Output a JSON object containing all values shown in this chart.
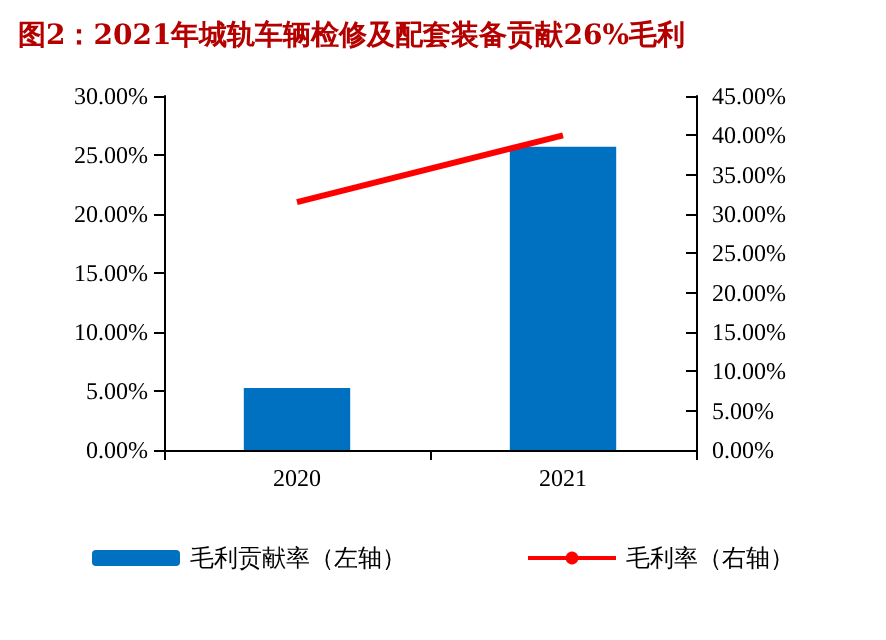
{
  "chart_data": {
    "type": "bar",
    "title": "图2：2021年城轨车辆检修及配套装备贡献26%毛利",
    "categories": [
      "2020",
      "2021"
    ],
    "series": [
      {
        "name": "毛利贡献率（左轴）",
        "color": "#0070c0",
        "values": [
          5.25,
          25.7
        ]
      },
      {
        "name": "毛利率（右轴）",
        "type": "line",
        "axis": "y2",
        "color": "#ff0000",
        "values": [
          31.5,
          40
        ]
      }
    ],
    "ylim": [
      0,
      30
    ],
    "yticks": [
      {
        "value": 0,
        "label": "0.00%"
      },
      {
        "value": 5,
        "label": "5.00%"
      },
      {
        "value": 10,
        "label": "10.00%"
      },
      {
        "value": 15,
        "label": "15.00%"
      },
      {
        "value": 20,
        "label": "20.00%"
      },
      {
        "value": 25,
        "label": "25.00%"
      },
      {
        "value": 30,
        "label": "30.00%"
      }
    ],
    "y2lim": [
      0,
      45
    ],
    "y2ticks": [
      {
        "value": 0,
        "label": "0.00%"
      },
      {
        "value": 5,
        "label": "5.00%"
      },
      {
        "value": 10,
        "label": "10.00%"
      },
      {
        "value": 15,
        "label": "15.00%"
      },
      {
        "value": 20,
        "label": "20.00%"
      },
      {
        "value": 25,
        "label": "25.00%"
      },
      {
        "value": 30,
        "label": "30.00%"
      },
      {
        "value": 35,
        "label": "35.00%"
      },
      {
        "value": 40,
        "label": "40.00%"
      },
      {
        "value": 45,
        "label": "45.00%"
      }
    ],
    "legend": "bottom",
    "grid": false,
    "marker": "none"
  }
}
